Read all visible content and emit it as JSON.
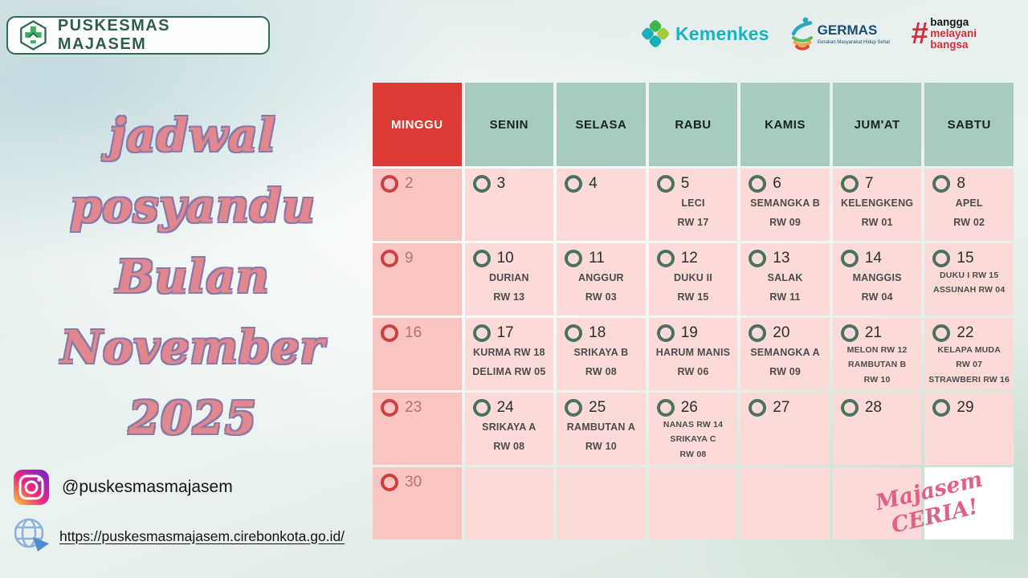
{
  "header": {
    "clinic_name": "PUSKESMAS MAJASEM",
    "logos": {
      "kemenkes": "Kemenkes",
      "germas": "GERMAS",
      "germas_sub": "Gerakan Masyarakat Hidup Sehat",
      "bangga": [
        "bangga",
        "melayani",
        "bangsa"
      ]
    }
  },
  "title": {
    "lines": [
      "jadwal",
      "posyandu",
      "Bulan",
      "November",
      "2025"
    ]
  },
  "calendar": {
    "day_headers": [
      "MINGGU",
      "SENIN",
      "SELASA",
      "RABU",
      "KAMIS",
      "JUM'AT",
      "SABTU"
    ],
    "weeks": [
      [
        {
          "date": "2"
        },
        {
          "date": "3"
        },
        {
          "date": "4"
        },
        {
          "date": "5",
          "lines": [
            "LECI",
            "RW 17"
          ]
        },
        {
          "date": "6",
          "lines": [
            "SEMANGKA B",
            "RW 09"
          ]
        },
        {
          "date": "7",
          "lines": [
            "KELENGKENG",
            "RW 01"
          ]
        },
        {
          "date": "8",
          "lines": [
            "APEL",
            "RW 02"
          ]
        }
      ],
      [
        {
          "date": "9"
        },
        {
          "date": "10",
          "lines": [
            "DURIAN",
            "RW 13"
          ]
        },
        {
          "date": "11",
          "lines": [
            "ANGGUR",
            "RW 03"
          ]
        },
        {
          "date": "12",
          "lines": [
            "DUKU II",
            "RW 15"
          ]
        },
        {
          "date": "13",
          "lines": [
            "SALAK",
            "RW 11"
          ]
        },
        {
          "date": "14",
          "lines": [
            "MANGGIS",
            "RW 04"
          ]
        },
        {
          "date": "15",
          "lines": [
            "DUKU I RW 15",
            "ASSUNAH RW 04"
          ]
        }
      ],
      [
        {
          "date": "16"
        },
        {
          "date": "17",
          "lines": [
            "KURMA RW 18",
            "DELIMA RW 05"
          ]
        },
        {
          "date": "18",
          "lines": [
            "SRIKAYA B",
            "RW 08"
          ]
        },
        {
          "date": "19",
          "lines": [
            "HARUM MANIS",
            "RW 06"
          ]
        },
        {
          "date": "20",
          "lines": [
            "SEMANGKA A",
            "RW 09"
          ]
        },
        {
          "date": "21",
          "lines": [
            "MELON RW 12",
            "RAMBUTAN B",
            "RW 10"
          ]
        },
        {
          "date": "22",
          "lines": [
            "KELAPA MUDA",
            "RW 07",
            "STRAWBERI RW 16"
          ]
        }
      ],
      [
        {
          "date": "23"
        },
        {
          "date": "24",
          "lines": [
            "SRIKAYA A",
            "RW 08"
          ]
        },
        {
          "date": "25",
          "lines": [
            "RAMBUTAN A",
            "RW 10"
          ]
        },
        {
          "date": "26",
          "lines": [
            "NANAS RW 14",
            "SRIKAYA C",
            "RW 08"
          ]
        },
        {
          "date": "27"
        },
        {
          "date": "28"
        },
        {
          "date": "29"
        }
      ],
      [
        {
          "date": "30"
        },
        {
          "empty": true
        },
        {
          "empty": true
        },
        {
          "empty": true
        },
        {
          "empty": true
        },
        {
          "empty": true
        },
        {
          "signature": true
        }
      ]
    ]
  },
  "signature": {
    "lines": [
      "Majasem",
      "CERIA!"
    ]
  },
  "footer": {
    "instagram": "@puskesmasmajasem",
    "website": "https://puskesmasmajasem.cirebonkota.go.id/"
  },
  "colors": {
    "sunday_red": "#dc3b35",
    "header_sage": "#a7cbbc",
    "cell_pink": "#fcdad7",
    "sunday_pink": "#f8c5c2",
    "ring_green": "#4b7163",
    "ring_red": "#ce4040",
    "title_pink": "#e2878e",
    "clinic_green": "#2e5f4b"
  }
}
